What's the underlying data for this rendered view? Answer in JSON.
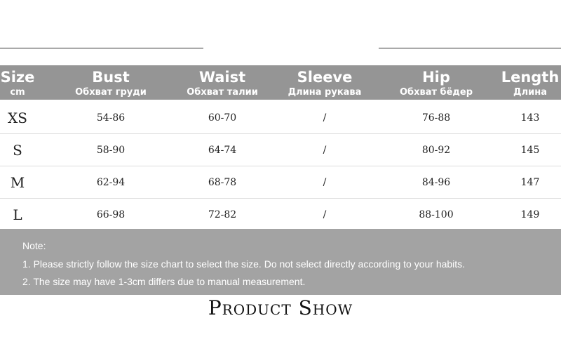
{
  "table": {
    "columns": [
      {
        "title": "Size",
        "subtitle": "cm"
      },
      {
        "title": "Bust",
        "subtitle": "Обхват груди"
      },
      {
        "title": "Waist",
        "subtitle": "Обхват талии"
      },
      {
        "title": "Sleeve",
        "subtitle": "Длина рукава"
      },
      {
        "title": "Hip",
        "subtitle": "Обхват бёдер"
      },
      {
        "title": "Length",
        "subtitle": "Длина"
      }
    ],
    "rows": [
      [
        "XS",
        "54-86",
        "60-70",
        "/",
        "76-88",
        "143"
      ],
      [
        "S",
        "58-90",
        "64-74",
        "/",
        "80-92",
        "145"
      ],
      [
        "M",
        "62-94",
        "68-78",
        "/",
        "84-96",
        "147"
      ],
      [
        "L",
        "66-98",
        "72-82",
        "/",
        "88-100",
        "149"
      ]
    ]
  },
  "note": {
    "label": "Note:",
    "lines": [
      "1. Please strictly follow the size chart to select the size. Do not select directly according to your habits.",
      "2. The size may have 1-3cm differs due to manual measurement."
    ]
  },
  "footer": {
    "title": "Product Show"
  }
}
